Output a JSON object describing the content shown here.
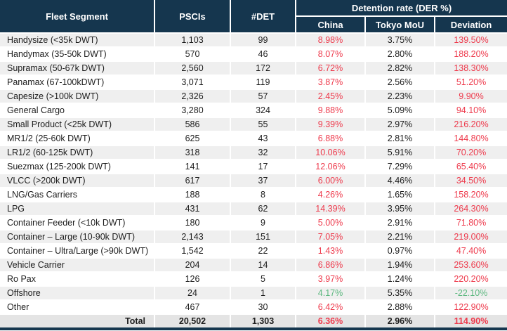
{
  "colors": {
    "header_bg": "#15364e",
    "header_text": "#ffffff",
    "negative_red": "#ee3a4c",
    "positive_green": "#5cb87f",
    "row_stripe": "#efefef",
    "total_row_bg": "#e4e4e4",
    "body_text": "#1d1d1d"
  },
  "chart_data": {
    "type": "table",
    "group_label": "Detention rate (DER %)",
    "columns": [
      "Fleet Segment",
      "PSCIs",
      "#DET",
      "China",
      "Tokyo MoU",
      "Deviation"
    ],
    "rows": [
      {
        "segment": "Handysize (<35k DWT)",
        "pscis": "1,103",
        "det": "99",
        "china": "8.98%",
        "tokyo_mou": "3.75%",
        "deviation": "139.50%",
        "china_tone": "red",
        "deviation_tone": "red"
      },
      {
        "segment": "Handymax (35-50k DWT)",
        "pscis": "570",
        "det": "46",
        "china": "8.07%",
        "tokyo_mou": "2.80%",
        "deviation": "188.20%",
        "china_tone": "red",
        "deviation_tone": "red"
      },
      {
        "segment": "Supramax (50-67k DWT)",
        "pscis": "2,560",
        "det": "172",
        "china": "6.72%",
        "tokyo_mou": "2.82%",
        "deviation": "138.30%",
        "china_tone": "red",
        "deviation_tone": "red"
      },
      {
        "segment": "Panamax (67-100kDWT)",
        "pscis": "3,071",
        "det": "119",
        "china": "3.87%",
        "tokyo_mou": "2.56%",
        "deviation": "51.20%",
        "china_tone": "red",
        "deviation_tone": "red"
      },
      {
        "segment": "Capesize (>100k DWT)",
        "pscis": "2,326",
        "det": "57",
        "china": "2.45%",
        "tokyo_mou": "2.23%",
        "deviation": "9.90%",
        "china_tone": "red",
        "deviation_tone": "red"
      },
      {
        "segment": "General Cargo",
        "pscis": "3,280",
        "det": "324",
        "china": "9.88%",
        "tokyo_mou": "5.09%",
        "deviation": "94.10%",
        "china_tone": "red",
        "deviation_tone": "red"
      },
      {
        "segment": "Small Product (<25k DWT)",
        "pscis": "586",
        "det": "55",
        "china": "9.39%",
        "tokyo_mou": "2.97%",
        "deviation": "216.20%",
        "china_tone": "red",
        "deviation_tone": "red"
      },
      {
        "segment": "MR1/2 (25-60k DWT)",
        "pscis": "625",
        "det": "43",
        "china": "6.88%",
        "tokyo_mou": "2.81%",
        "deviation": "144.80%",
        "china_tone": "red",
        "deviation_tone": "red"
      },
      {
        "segment": "LR1/2 (60-125k DWT)",
        "pscis": "318",
        "det": "32",
        "china": "10.06%",
        "tokyo_mou": "5.91%",
        "deviation": "70.20%",
        "china_tone": "red",
        "deviation_tone": "red"
      },
      {
        "segment": "Suezmax (125-200k DWT)",
        "pscis": "141",
        "det": "17",
        "china": "12.06%",
        "tokyo_mou": "7.29%",
        "deviation": "65.40%",
        "china_tone": "red",
        "deviation_tone": "red"
      },
      {
        "segment": "VLCC (>200k DWT)",
        "pscis": "617",
        "det": "37",
        "china": "6.00%",
        "tokyo_mou": "4.46%",
        "deviation": "34.50%",
        "china_tone": "red",
        "deviation_tone": "red"
      },
      {
        "segment": "LNG/Gas Carriers",
        "pscis": "188",
        "det": "8",
        "china": "4.26%",
        "tokyo_mou": "1.65%",
        "deviation": "158.20%",
        "china_tone": "red",
        "deviation_tone": "red"
      },
      {
        "segment": "LPG",
        "pscis": "431",
        "det": "62",
        "china": "14.39%",
        "tokyo_mou": "3.95%",
        "deviation": "264.30%",
        "china_tone": "red",
        "deviation_tone": "red"
      },
      {
        "segment": "Container Feeder (<10k DWT)",
        "pscis": "180",
        "det": "9",
        "china": "5.00%",
        "tokyo_mou": "2.91%",
        "deviation": "71.80%",
        "china_tone": "red",
        "deviation_tone": "red"
      },
      {
        "segment": "Container – Large (10-90k DWT)",
        "pscis": "2,143",
        "det": "151",
        "china": "7.05%",
        "tokyo_mou": "2.21%",
        "deviation": "219.00%",
        "china_tone": "red",
        "deviation_tone": "red"
      },
      {
        "segment": "Container – Ultra/Large (>90k DWT)",
        "pscis": "1,542",
        "det": "22",
        "china": "1.43%",
        "tokyo_mou": "0.97%",
        "deviation": "47.40%",
        "china_tone": "red",
        "deviation_tone": "red"
      },
      {
        "segment": "Vehicle Carrier",
        "pscis": "204",
        "det": "14",
        "china": "6.86%",
        "tokyo_mou": "1.94%",
        "deviation": "253.60%",
        "china_tone": "red",
        "deviation_tone": "red"
      },
      {
        "segment": "Ro Pax",
        "pscis": "126",
        "det": "5",
        "china": "3.97%",
        "tokyo_mou": "1.24%",
        "deviation": "220.20%",
        "china_tone": "red",
        "deviation_tone": "red"
      },
      {
        "segment": "Offshore",
        "pscis": "24",
        "det": "1",
        "china": "4.17%",
        "tokyo_mou": "5.35%",
        "deviation": "-22.10%",
        "china_tone": "green",
        "deviation_tone": "green"
      },
      {
        "segment": "Other",
        "pscis": "467",
        "det": "30",
        "china": "6.42%",
        "tokyo_mou": "2.88%",
        "deviation": "122.90%",
        "china_tone": "red",
        "deviation_tone": "red"
      }
    ],
    "total": {
      "label": "Total",
      "pscis": "20,502",
      "det": "1,303",
      "china": "6.36%",
      "tokyo_mou": "2.96%",
      "deviation": "114.90%",
      "china_tone": "red",
      "deviation_tone": "red"
    }
  }
}
